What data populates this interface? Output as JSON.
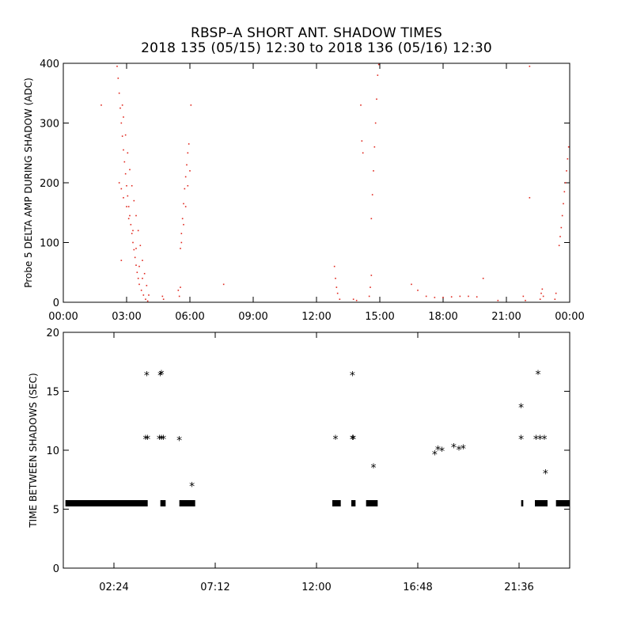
{
  "figure": {
    "title_line1": "RBSP–A SHORT ANT. SHADOW TIMES",
    "title_line2": "2018 135 (05/15) 12:30 to 2018 136 (05/16) 12:30"
  },
  "chart_data": [
    {
      "type": "scatter",
      "title": "",
      "xlabel": "",
      "ylabel": "Probe 5 DELTA AMP DURING SHADOW (ADC)",
      "xlim": [
        0,
        24
      ],
      "ylim": [
        0,
        400
      ],
      "x_ticks": [
        0,
        3,
        6,
        9,
        12,
        15,
        18,
        21,
        24
      ],
      "x_tick_labels": [
        "00:00",
        "03:00",
        "06:00",
        "09:00",
        "12:00",
        "15:00",
        "18:00",
        "21:00",
        "00:00"
      ],
      "y_ticks": [
        0,
        100,
        200,
        300,
        400
      ],
      "y_tick_labels": [
        "0",
        "100",
        "200",
        "300",
        "400"
      ],
      "marker_color": "#e0281e",
      "series": [
        {
          "points": [
            [
              2.55,
              395
            ],
            [
              2.6,
              375
            ],
            [
              2.65,
              350
            ],
            [
              2.7,
              325
            ],
            [
              2.75,
              300
            ],
            [
              2.8,
              278
            ],
            [
              2.85,
              255
            ],
            [
              2.9,
              235
            ],
            [
              2.95,
              215
            ],
            [
              3.0,
              195
            ],
            [
              3.05,
              178
            ],
            [
              3.1,
              160
            ],
            [
              3.15,
              145
            ],
            [
              3.2,
              130
            ],
            [
              3.25,
              115
            ],
            [
              3.3,
              100
            ],
            [
              3.35,
              88
            ],
            [
              3.4,
              75
            ],
            [
              3.45,
              62
            ],
            [
              3.5,
              50
            ],
            [
              3.55,
              40
            ],
            [
              3.6,
              30
            ],
            [
              3.7,
              20
            ],
            [
              3.8,
              12
            ],
            [
              3.9,
              5
            ],
            [
              4.0,
              2
            ],
            [
              2.8,
              330
            ],
            [
              2.85,
              310
            ],
            [
              2.95,
              280
            ],
            [
              3.05,
              250
            ],
            [
              3.15,
              222
            ],
            [
              3.25,
              195
            ],
            [
              3.35,
              170
            ],
            [
              3.45,
              145
            ],
            [
              3.55,
              120
            ],
            [
              3.65,
              95
            ],
            [
              3.75,
              70
            ],
            [
              3.85,
              48
            ],
            [
              3.95,
              28
            ],
            [
              4.05,
              12
            ],
            [
              2.65,
              200
            ],
            [
              2.75,
              190
            ],
            [
              2.85,
              175
            ],
            [
              3.0,
              160
            ],
            [
              3.1,
              140
            ],
            [
              3.3,
              120
            ],
            [
              3.45,
              90
            ],
            [
              3.6,
              60
            ],
            [
              3.75,
              40
            ],
            [
              1.8,
              330
            ],
            [
              2.75,
              70
            ],
            [
              4.7,
              10
            ],
            [
              4.75,
              5
            ],
            [
              5.45,
              20
            ],
            [
              5.5,
              10
            ],
            [
              5.55,
              25
            ],
            [
              5.55,
              90
            ],
            [
              5.6,
              115
            ],
            [
              5.65,
              140
            ],
            [
              5.7,
              165
            ],
            [
              5.75,
              190
            ],
            [
              5.8,
              210
            ],
            [
              5.85,
              230
            ],
            [
              5.9,
              250
            ],
            [
              5.95,
              265
            ],
            [
              5.6,
              100
            ],
            [
              5.7,
              130
            ],
            [
              5.8,
              160
            ],
            [
              5.9,
              195
            ],
            [
              6.0,
              220
            ],
            [
              6.05,
              330
            ],
            [
              7.6,
              30
            ],
            [
              12.85,
              60
            ],
            [
              12.9,
              40
            ],
            [
              12.95,
              25
            ],
            [
              13.0,
              15
            ],
            [
              13.1,
              5
            ],
            [
              13.75,
              5
            ],
            [
              13.9,
              3
            ],
            [
              14.1,
              330
            ],
            [
              14.15,
              270
            ],
            [
              14.2,
              250
            ],
            [
              14.5,
              10
            ],
            [
              14.55,
              25
            ],
            [
              14.6,
              45
            ],
            [
              14.6,
              140
            ],
            [
              14.65,
              180
            ],
            [
              14.7,
              220
            ],
            [
              14.75,
              260
            ],
            [
              14.8,
              300
            ],
            [
              14.85,
              340
            ],
            [
              14.9,
              380
            ],
            [
              14.95,
              398
            ],
            [
              16.5,
              30
            ],
            [
              16.8,
              20
            ],
            [
              17.2,
              10
            ],
            [
              17.6,
              8
            ],
            [
              18.0,
              8
            ],
            [
              18.4,
              9
            ],
            [
              18.8,
              10
            ],
            [
              19.2,
              10
            ],
            [
              19.6,
              9
            ],
            [
              19.9,
              40
            ],
            [
              20.6,
              3
            ],
            [
              21.8,
              10
            ],
            [
              21.9,
              3
            ],
            [
              22.1,
              175
            ],
            [
              22.1,
              395
            ],
            [
              22.6,
              5
            ],
            [
              22.65,
              15
            ],
            [
              22.7,
              22
            ],
            [
              22.75,
              10
            ],
            [
              23.3,
              5
            ],
            [
              23.35,
              15
            ],
            [
              23.5,
              95
            ],
            [
              23.55,
              110
            ],
            [
              23.6,
              125
            ],
            [
              23.65,
              145
            ],
            [
              23.7,
              165
            ],
            [
              23.75,
              185
            ],
            [
              23.8,
              200
            ],
            [
              23.85,
              220
            ],
            [
              23.9,
              240
            ],
            [
              23.95,
              260
            ]
          ]
        }
      ]
    },
    {
      "type": "scatter",
      "title": "",
      "xlabel": "",
      "ylabel": "TIME BETWEEN SHADOWS (SEC)",
      "xlim": [
        0,
        24
      ],
      "ylim": [
        0,
        20
      ],
      "x_ticks": [
        2.4,
        7.2,
        12.0,
        16.8,
        21.6
      ],
      "x_tick_labels": [
        "02:24",
        "07:12",
        "12:00",
        "16:48",
        "21:36"
      ],
      "y_ticks": [
        0,
        5,
        10,
        15,
        20
      ],
      "y_tick_labels": [
        "0",
        "5",
        "10",
        "15",
        "20"
      ],
      "marker": "asterisk",
      "marker_color": "#000000",
      "series": [
        {
          "points": [
            [
              3.95,
              16.4
            ],
            [
              4.6,
              16.4
            ],
            [
              4.65,
              16.5
            ],
            [
              3.9,
              11.0
            ],
            [
              4.0,
              11.0
            ],
            [
              4.55,
              11.0
            ],
            [
              4.65,
              11.0
            ],
            [
              4.75,
              11.0
            ],
            [
              5.5,
              10.9
            ],
            [
              6.1,
              7.0
            ],
            [
              12.9,
              11.0
            ],
            [
              13.7,
              16.4
            ],
            [
              13.7,
              11.0
            ],
            [
              13.75,
              11.0
            ],
            [
              14.7,
              8.6
            ],
            [
              17.6,
              9.7
            ],
            [
              17.75,
              10.1
            ],
            [
              17.95,
              10.0
            ],
            [
              18.5,
              10.3
            ],
            [
              18.75,
              10.1
            ],
            [
              18.95,
              10.2
            ],
            [
              21.7,
              13.7
            ],
            [
              21.7,
              11.0
            ],
            [
              22.5,
              16.5
            ],
            [
              22.4,
              11.0
            ],
            [
              22.6,
              11.0
            ],
            [
              22.8,
              11.0
            ],
            [
              22.85,
              8.1
            ]
          ]
        },
        {
          "name": "",
          "band_segments_hours": [
            [
              0.1,
              4.0
            ],
            [
              4.6,
              4.85
            ],
            [
              5.5,
              6.25
            ],
            [
              12.75,
              13.15
            ],
            [
              13.65,
              13.85
            ],
            [
              14.35,
              14.9
            ],
            [
              21.7,
              21.8
            ],
            [
              22.35,
              22.95
            ],
            [
              23.35,
              24.0
            ]
          ],
          "band_value": 5.5
        }
      ]
    }
  ]
}
